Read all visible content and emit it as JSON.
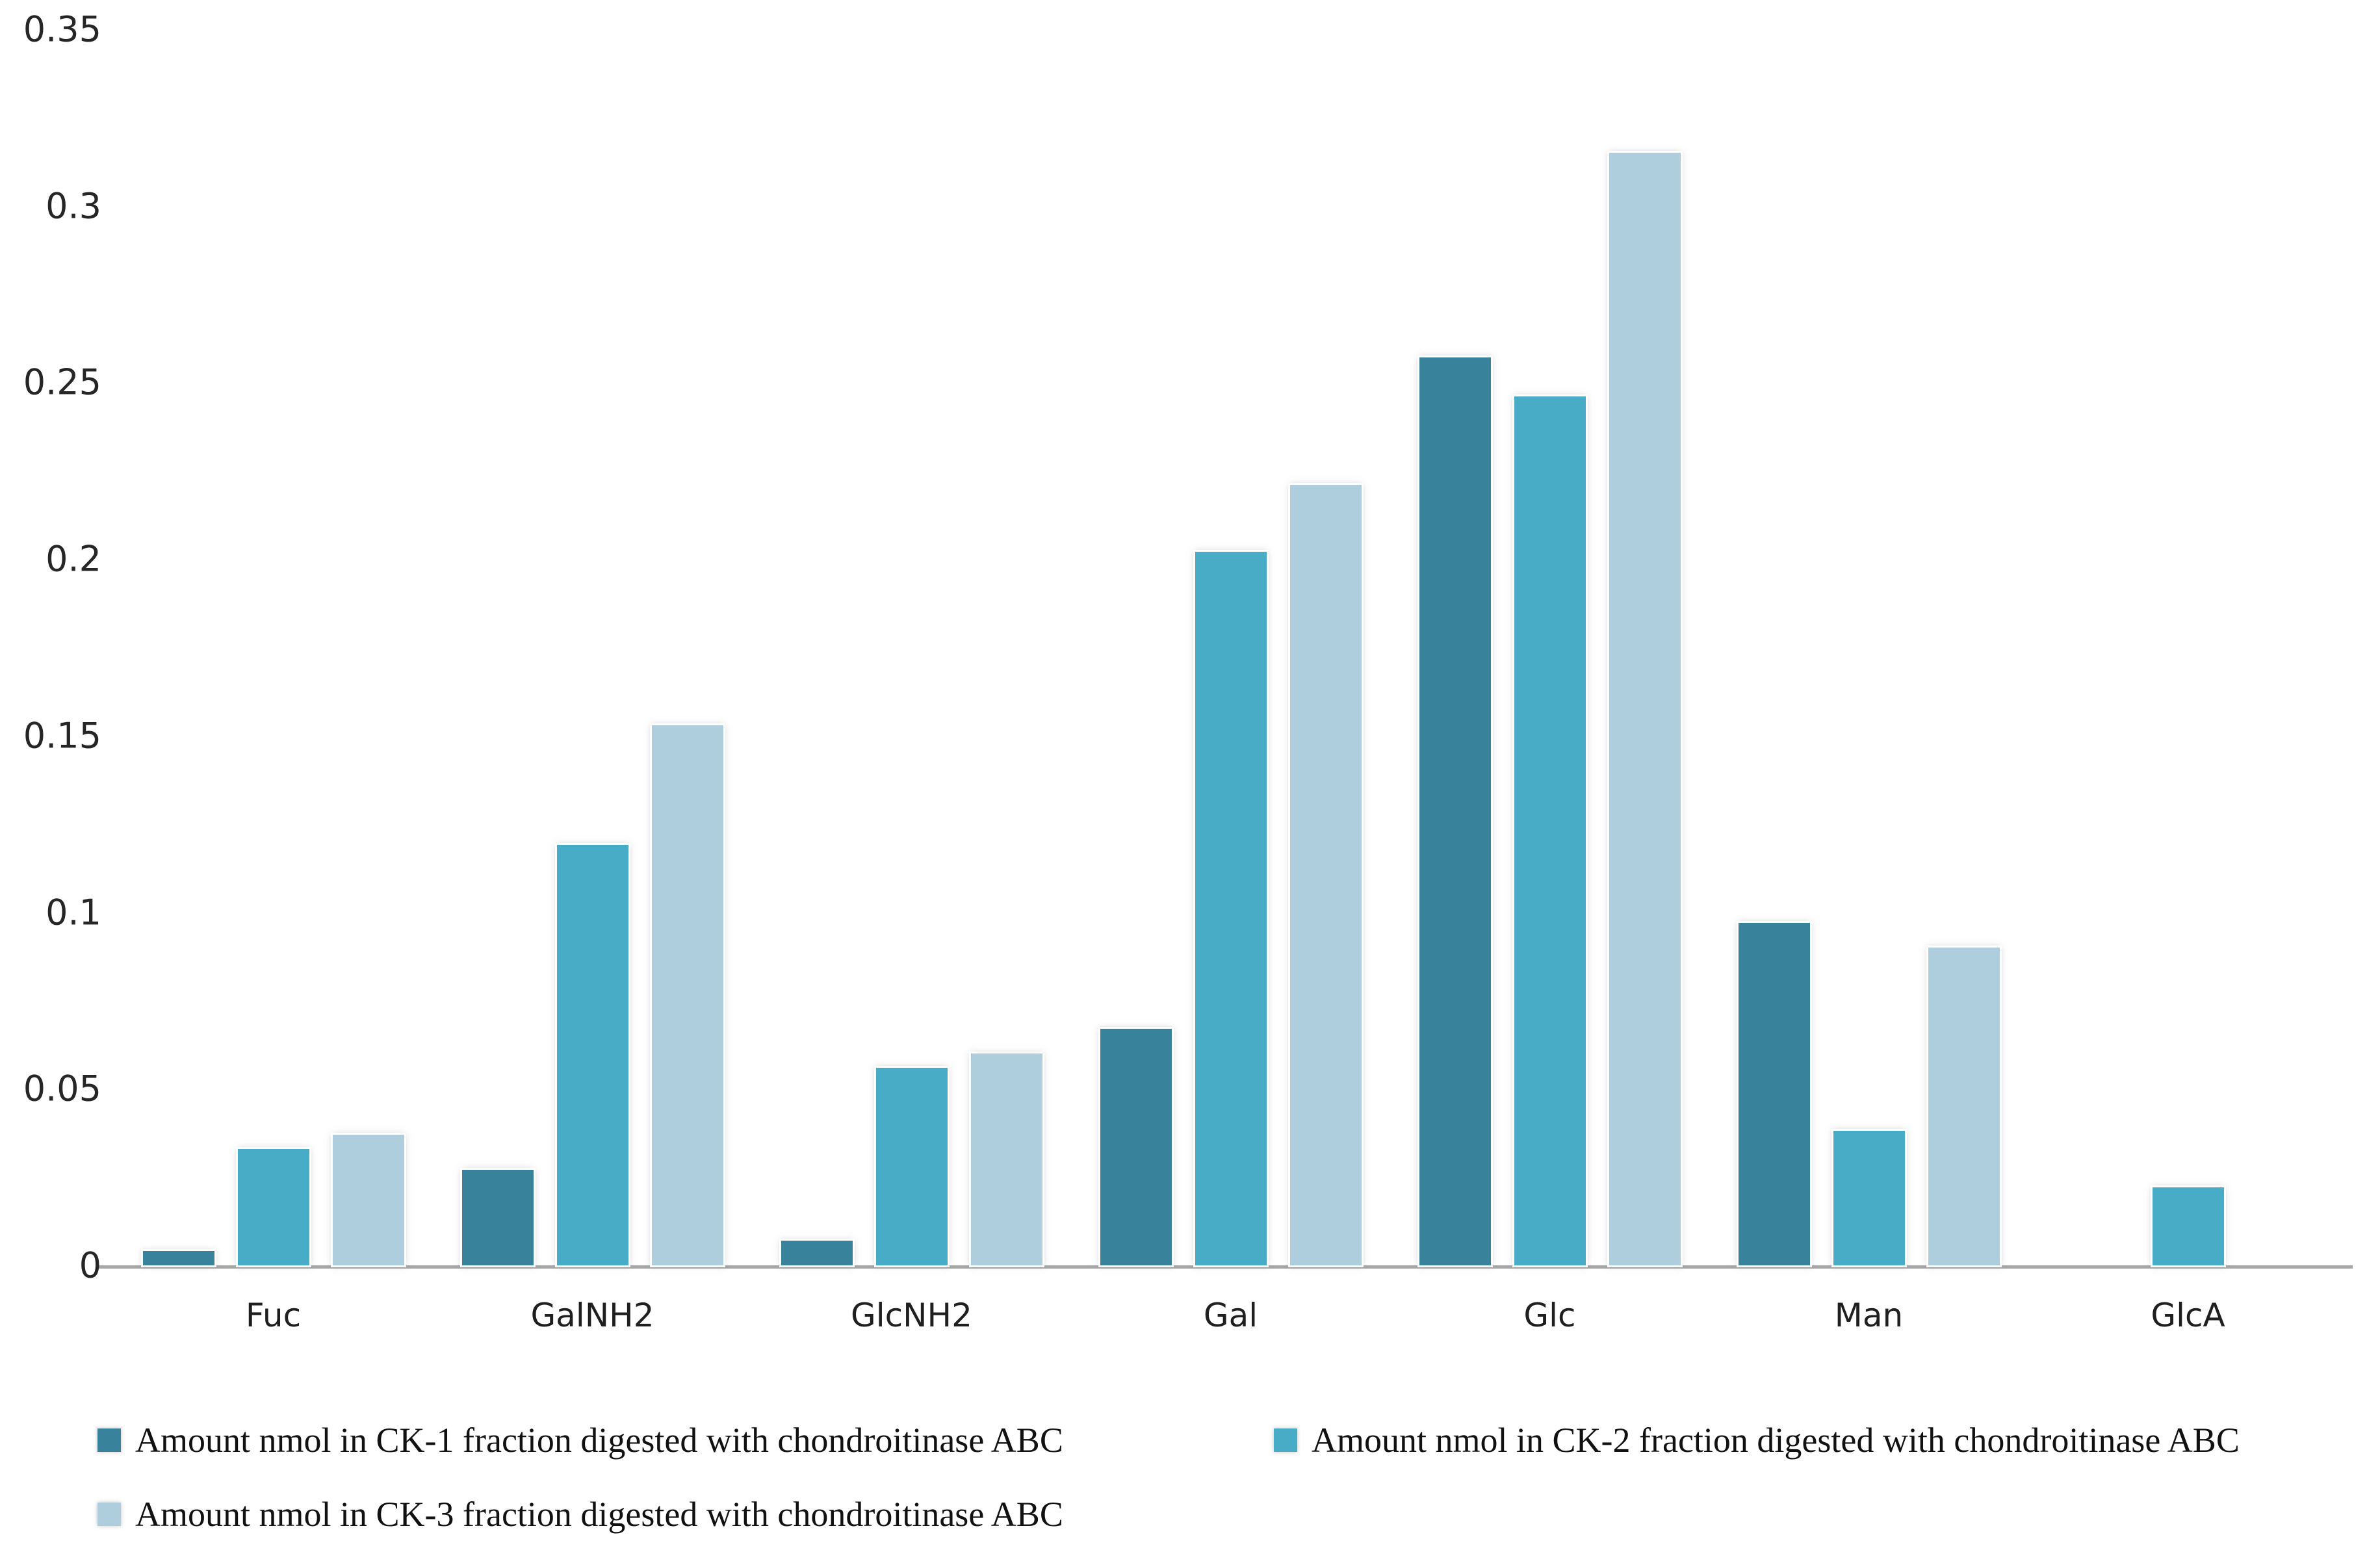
{
  "chart_data": {
    "type": "bar",
    "title": "",
    "xlabel": "",
    "ylabel": "",
    "categories": [
      "Fuc",
      "GalNH2",
      "GlcNH2",
      "Gal",
      "Glc",
      "Man",
      "GlcA"
    ],
    "series": [
      {
        "name": "Amount nmol in CK-1 fraction digested with chondroitinase ABC",
        "color": "#38839B",
        "values": [
          0.004,
          0.027,
          0.007,
          0.067,
          0.257,
          0.097,
          0
        ]
      },
      {
        "name": "Amount nmol in CK-2 fraction digested with chondroitinase ABC",
        "color": "#48ACC6",
        "values": [
          0.033,
          0.119,
          0.056,
          0.202,
          0.246,
          0.038,
          0.022
        ]
      },
      {
        "name": "Amount nmol in CK-3 fraction digested with chondroitinase ABC",
        "color": "#AFCEDD",
        "values": [
          0.037,
          0.153,
          0.06,
          0.221,
          0.315,
          0.09,
          0
        ]
      }
    ],
    "ylim": [
      0,
      0.35
    ],
    "ytick_step": 0.05,
    "ytick_labels": [
      "0",
      "0.05",
      "0.1",
      "0.15",
      "0.2",
      "0.25",
      "0.3",
      "0.35"
    ],
    "grid": false,
    "legend_position": "bottom"
  },
  "colors": {
    "background": "#FFFFFF",
    "axis_line": "#A6A6A6",
    "tick_text": "#262626",
    "legend_text": "#111111"
  }
}
